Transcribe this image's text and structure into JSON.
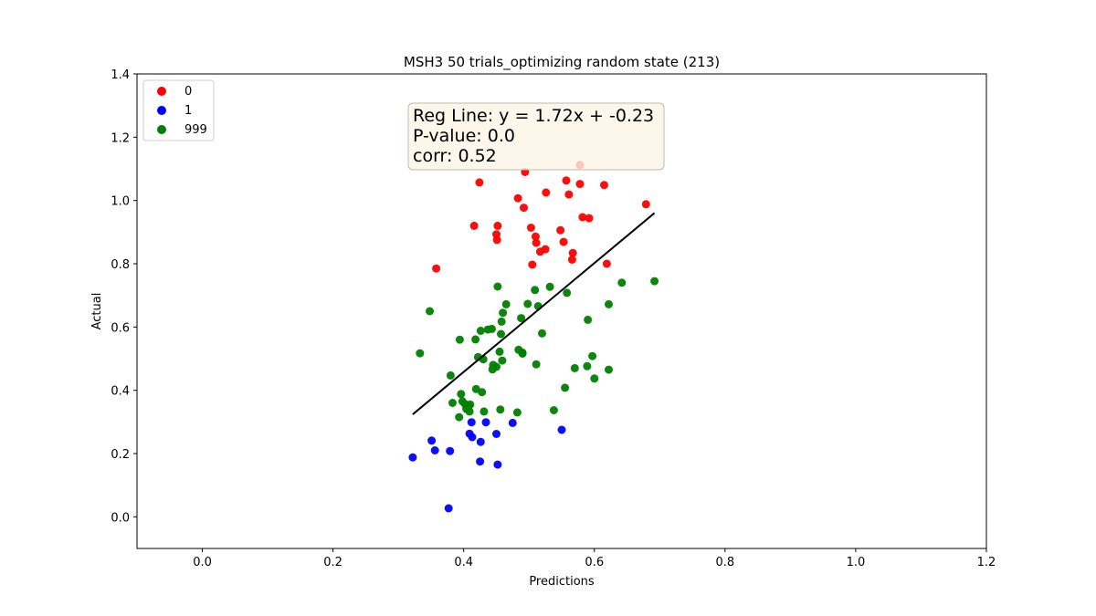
{
  "chart_data": {
    "type": "scatter",
    "title": "MSH3 50 trials_optimizing random state (213)",
    "xlabel": "Predictions",
    "ylabel": "Actual",
    "xlim": [
      -0.1,
      1.2
    ],
    "ylim": [
      -0.1,
      1.4
    ],
    "xticks": [
      "0.0",
      "0.2",
      "0.4",
      "0.6",
      "0.8",
      "1.0",
      "1.2"
    ],
    "yticks": [
      "0.0",
      "0.2",
      "0.4",
      "0.6",
      "0.8",
      "1.0",
      "1.2",
      "1.4"
    ],
    "grid": false,
    "legend_position": "top-left",
    "series": [
      {
        "name": "0",
        "color": "#ff0000",
        "points": [
          [
            0.358,
            0.785
          ],
          [
            0.416,
            0.92
          ],
          [
            0.424,
            1.057
          ],
          [
            0.45,
            0.893
          ],
          [
            0.451,
            0.875
          ],
          [
            0.452,
            0.92
          ],
          [
            0.483,
            1.007
          ],
          [
            0.492,
            0.977
          ],
          [
            0.494,
            1.09
          ],
          [
            0.503,
            0.914
          ],
          [
            0.505,
            0.797
          ],
          [
            0.51,
            0.886
          ],
          [
            0.511,
            0.866
          ],
          [
            0.517,
            0.838
          ],
          [
            0.525,
            0.846
          ],
          [
            0.526,
            1.025
          ],
          [
            0.548,
            0.906
          ],
          [
            0.553,
            0.869
          ],
          [
            0.557,
            1.063
          ],
          [
            0.561,
            1.019
          ],
          [
            0.566,
            0.813
          ],
          [
            0.567,
            0.834
          ],
          [
            0.578,
            1.052
          ],
          [
            0.578,
            1.112
          ],
          [
            0.582,
            0.947
          ],
          [
            0.592,
            0.944
          ],
          [
            0.615,
            1.049
          ],
          [
            0.619,
            0.8
          ],
          [
            0.679,
            0.988
          ]
        ]
      },
      {
        "name": "1",
        "color": "#0000ff",
        "points": [
          [
            0.322,
            0.188
          ],
          [
            0.351,
            0.241
          ],
          [
            0.356,
            0.21
          ],
          [
            0.377,
            0.027
          ],
          [
            0.379,
            0.208
          ],
          [
            0.409,
            0.263
          ],
          [
            0.412,
            0.299
          ],
          [
            0.413,
            0.252
          ],
          [
            0.425,
            0.175
          ],
          [
            0.426,
            0.237
          ],
          [
            0.434,
            0.299
          ],
          [
            0.45,
            0.262
          ],
          [
            0.452,
            0.165
          ],
          [
            0.475,
            0.297
          ],
          [
            0.55,
            0.275
          ]
        ]
      },
      {
        "name": "999",
        "color": "#008000",
        "points": [
          [
            0.333,
            0.517
          ],
          [
            0.348,
            0.65
          ],
          [
            0.38,
            0.447
          ],
          [
            0.383,
            0.36
          ],
          [
            0.393,
            0.315
          ],
          [
            0.394,
            0.56
          ],
          [
            0.396,
            0.388
          ],
          [
            0.398,
            0.365
          ],
          [
            0.402,
            0.357
          ],
          [
            0.404,
            0.341
          ],
          [
            0.407,
            0.348
          ],
          [
            0.409,
            0.333
          ],
          [
            0.41,
            0.355
          ],
          [
            0.418,
            0.561
          ],
          [
            0.419,
            0.404
          ],
          [
            0.422,
            0.505
          ],
          [
            0.426,
            0.588
          ],
          [
            0.428,
            0.394
          ],
          [
            0.43,
            0.498
          ],
          [
            0.431,
            0.333
          ],
          [
            0.437,
            0.592
          ],
          [
            0.443,
            0.594
          ],
          [
            0.444,
            0.466
          ],
          [
            0.445,
            0.48
          ],
          [
            0.45,
            0.474
          ],
          [
            0.452,
            0.728
          ],
          [
            0.455,
            0.522
          ],
          [
            0.456,
            0.339
          ],
          [
            0.457,
            0.578
          ],
          [
            0.458,
            0.617
          ],
          [
            0.459,
            0.494
          ],
          [
            0.46,
            0.645
          ],
          [
            0.465,
            0.672
          ],
          [
            0.482,
            0.33
          ],
          [
            0.484,
            0.528
          ],
          [
            0.488,
            0.628
          ],
          [
            0.49,
            0.516
          ],
          [
            0.49,
            0.519
          ],
          [
            0.498,
            0.673
          ],
          [
            0.509,
            0.717
          ],
          [
            0.511,
            0.482
          ],
          [
            0.514,
            0.666
          ],
          [
            0.52,
            0.58
          ],
          [
            0.532,
            0.727
          ],
          [
            0.538,
            0.337
          ],
          [
            0.555,
            0.408
          ],
          [
            0.558,
            0.708
          ],
          [
            0.57,
            0.47
          ],
          [
            0.589,
            0.476
          ],
          [
            0.59,
            0.623
          ],
          [
            0.597,
            0.508
          ],
          [
            0.6,
            0.437
          ],
          [
            0.622,
            0.672
          ],
          [
            0.622,
            0.465
          ],
          [
            0.642,
            0.74
          ],
          [
            0.692,
            0.745
          ]
        ]
      }
    ],
    "regression_line": {
      "color": "#000000",
      "x_start": 0.322,
      "x_end": 0.692,
      "slope": 1.72,
      "intercept": -0.23
    },
    "annotation": {
      "lines": [
        "Reg Line: y = 1.72x + -0.23",
        "P-value: 0.0",
        "corr: 0.52"
      ],
      "background": "#fbf4e6",
      "border": "#bfbab0"
    }
  }
}
